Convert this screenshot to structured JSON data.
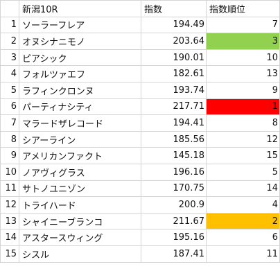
{
  "header": {
    "col_a": "",
    "col_b": "新潟10R",
    "col_c": "指数",
    "col_d": "指数順位"
  },
  "highlight_colors": {
    "rank1": "#ff0000",
    "rank2": "#ffc000",
    "rank3": "#92d050"
  },
  "rows": [
    {
      "no": "1",
      "name": "ソーラーフレア",
      "index": "194.49",
      "rank": "7",
      "fill": ""
    },
    {
      "no": "2",
      "name": "オヌシナニモノ",
      "index": "203.64",
      "rank": "3",
      "fill": "#92d050"
    },
    {
      "no": "3",
      "name": "ピアシック",
      "index": "190.01",
      "rank": "10",
      "fill": ""
    },
    {
      "no": "4",
      "name": "フォルツァエフ",
      "index": "182.61",
      "rank": "13",
      "fill": ""
    },
    {
      "no": "5",
      "name": "ラフィンクロンヌ",
      "index": "193.74",
      "rank": "9",
      "fill": ""
    },
    {
      "no": "6",
      "name": "パーティナシティ",
      "index": "217.71",
      "rank": "1",
      "fill": "#ff0000"
    },
    {
      "no": "7",
      "name": "マラードザレコード",
      "index": "194.41",
      "rank": "8",
      "fill": ""
    },
    {
      "no": "8",
      "name": "シアーライン",
      "index": "185.56",
      "rank": "12",
      "fill": ""
    },
    {
      "no": "9",
      "name": "アメリカンファクト",
      "index": "145.18",
      "rank": "15",
      "fill": ""
    },
    {
      "no": "10",
      "name": "ノアヴィグラス",
      "index": "196.16",
      "rank": "5",
      "fill": ""
    },
    {
      "no": "11",
      "name": "サトノユニゾン",
      "index": "170.75",
      "rank": "14",
      "fill": ""
    },
    {
      "no": "12",
      "name": "トライハード",
      "index": "200.9",
      "rank": "4",
      "fill": ""
    },
    {
      "no": "13",
      "name": "シャイニーブランコ",
      "index": "211.67",
      "rank": "2",
      "fill": "#ffc000"
    },
    {
      "no": "14",
      "name": "アスタースウィング",
      "index": "195.16",
      "rank": "6",
      "fill": ""
    },
    {
      "no": "15",
      "name": "シスル",
      "index": "187.41",
      "rank": "11",
      "fill": ""
    }
  ]
}
